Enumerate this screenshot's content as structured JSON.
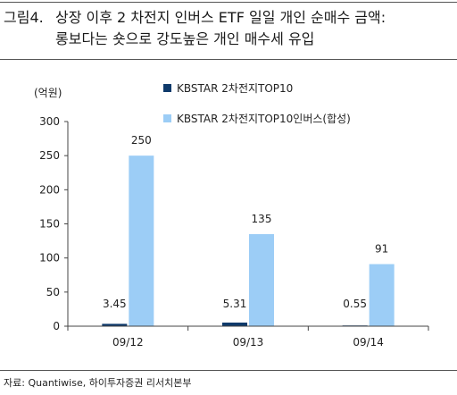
{
  "header": {
    "figure_label": "그림4.",
    "title_line1": "상장 이후 2 차전지 인버스 ETF 일일 개인 순매수 금액:",
    "title_line2": "롱보다는 숏으로 강도높은 개인 매수세 유입"
  },
  "source": "자료: Quantiwise, 하이투자증권 리서치본부",
  "colors": {
    "series1": "#0f3a6b",
    "series2": "#9ccdf6",
    "axis": "#444444",
    "rule": "#555555"
  },
  "chart_data": {
    "type": "bar",
    "unit_label": "(억원)",
    "categories": [
      "09/12",
      "09/13",
      "09/14"
    ],
    "series": [
      {
        "name": "KBSTAR 2차전지TOP10",
        "values": [
          3.45,
          5.31,
          0.55
        ],
        "labels": [
          "3.45",
          "5.31",
          "0.55"
        ]
      },
      {
        "name": "KBSTAR 2차전지TOP10인버스(합성)",
        "values": [
          250,
          135,
          91
        ],
        "labels": [
          "250",
          "135",
          "91"
        ]
      }
    ],
    "ylim": [
      0,
      300
    ],
    "yticks": [
      0,
      50,
      100,
      150,
      200,
      250,
      300
    ],
    "grid": false,
    "legend_position": "top-right"
  }
}
